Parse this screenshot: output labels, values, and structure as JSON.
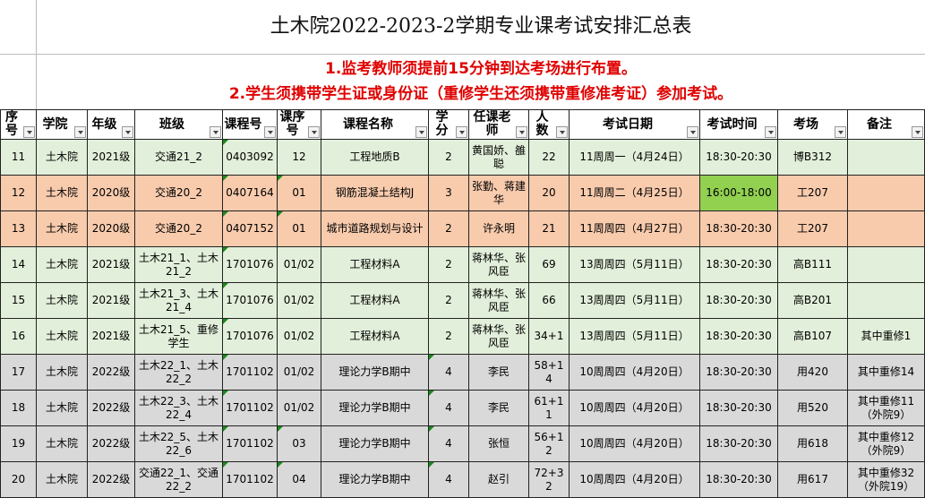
{
  "title": "土木院2022-2023-2学期专业课考试安排汇总表",
  "notes": [
    "1.监考教师须提前15分钟到达考场进行布置。",
    "2.学生须携带学生证或身份证（重修学生还须携带重修准考证）参加考试。"
  ],
  "headers": [
    "序号",
    "学院",
    "年级",
    "班级",
    "课程号",
    "课序号",
    "课程名称",
    "学分",
    "任课老师",
    "人数",
    "考试日期",
    "考试时间",
    "考场",
    "备注"
  ],
  "colors": {
    "green": "#e2efda",
    "orange": "#f8cbad",
    "gray": "#d9d9d9",
    "highlight": "#92d050",
    "notes": "#e00000"
  },
  "rows": [
    {
      "c": [
        "11",
        "土木院",
        "2021级",
        "交通21_2",
        "0403092",
        "12",
        "工程地质B",
        "2",
        "黄国娇、雒聪",
        "22",
        "11周周一（4月24日）",
        "18:30-20:30",
        "博B312",
        ""
      ],
      "style": "g"
    },
    {
      "c": [
        "12",
        "土木院",
        "2020级",
        "交通20_2",
        "0407164",
        "01",
        "钢筋混凝土结构J",
        "3",
        "张勤、蒋建华",
        "20",
        "11周周二（4月25日）",
        "16:00-18:00",
        "工207",
        ""
      ],
      "style": "o"
    },
    {
      "c": [
        "13",
        "土木院",
        "2020级",
        "交通20_2",
        "0407152",
        "01",
        "城市道路规划与设计",
        "2",
        "许永明",
        "21",
        "11周周四（4月27日）",
        "18:30-20:30",
        "工207",
        ""
      ],
      "style": "o"
    },
    {
      "c": [
        "14",
        "土木院",
        "2021级",
        "土木21_1、土木21_2",
        "1701076",
        "01/02",
        "工程材料A",
        "2",
        "蒋林华、张风臣",
        "69",
        "13周周四（5月11日）",
        "18:30-20:30",
        "高B111",
        ""
      ],
      "style": "g"
    },
    {
      "c": [
        "15",
        "土木院",
        "2021级",
        "土木21_3、土木21_4",
        "1701076",
        "01/02",
        "工程材料A",
        "2",
        "蒋林华、张风臣",
        "66",
        "13周周四（5月11日）",
        "18:30-20:30",
        "高B201",
        ""
      ],
      "style": "g"
    },
    {
      "c": [
        "16",
        "土木院",
        "2021级",
        "土木21_5、重修学生",
        "1701076",
        "01/02",
        "工程材料A",
        "2",
        "蒋林华、张风臣",
        "34+1",
        "13周周四（5月11日）",
        "18:30-20:30",
        "高B107",
        "其中重修1"
      ],
      "style": "g"
    },
    {
      "c": [
        "17",
        "土木院",
        "2022级",
        "土木22_1、土木22_2",
        "1701102",
        "01/02",
        "理论力学B期中",
        "4",
        "李民",
        "58+14",
        "10周周四（4月20日）",
        "18:30-20:30",
        "用420",
        "其中重修14"
      ],
      "style": "y"
    },
    {
      "c": [
        "18",
        "土木院",
        "2022级",
        "土木22_3、土木22_4",
        "1701102",
        "01/02",
        "理论力学B期中",
        "4",
        "李民",
        "61+11",
        "10周周四（4月20日）",
        "18:30-20:30",
        "用520",
        "其中重修11（外院9）"
      ],
      "style": "y"
    },
    {
      "c": [
        "19",
        "土木院",
        "2022级",
        "土木22_5、土木22_6",
        "1701102",
        "03",
        "理论力学B期中",
        "4",
        "张恒",
        "56+12",
        "10周周四（4月20日）",
        "18:30-20:30",
        "用618",
        "其中重修12（外院9）"
      ],
      "style": "y"
    },
    {
      "c": [
        "20",
        "土木院",
        "2022级",
        "交通22_1、交通22_2",
        "1701102",
        "04",
        "理论力学B期中",
        "4",
        "赵引",
        "72+32",
        "10周周四（4月20日）",
        "18:30-20:30",
        "用617",
        "其中重修32（外院19）"
      ],
      "style": "y"
    }
  ]
}
